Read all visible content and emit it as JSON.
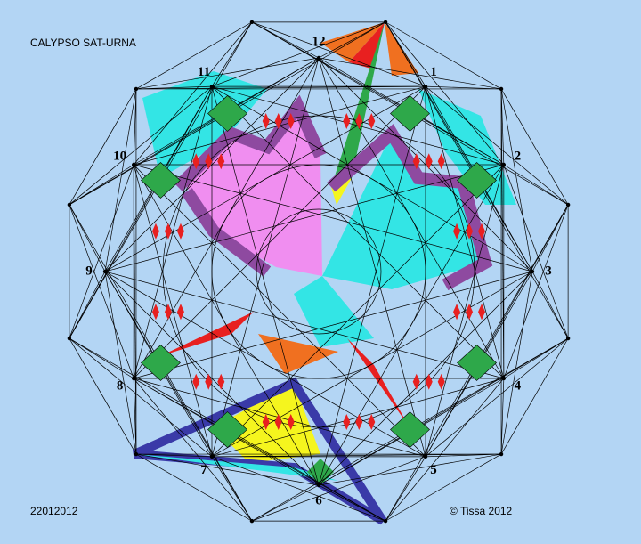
{
  "title": "CALYPSO SAT-URNA",
  "date": "22012012",
  "credit": "© Tissa 2012",
  "numbers": [
    "1",
    "2",
    "3",
    "4",
    "5",
    "6",
    "7",
    "8",
    "9",
    "10",
    "11",
    "12"
  ]
}
